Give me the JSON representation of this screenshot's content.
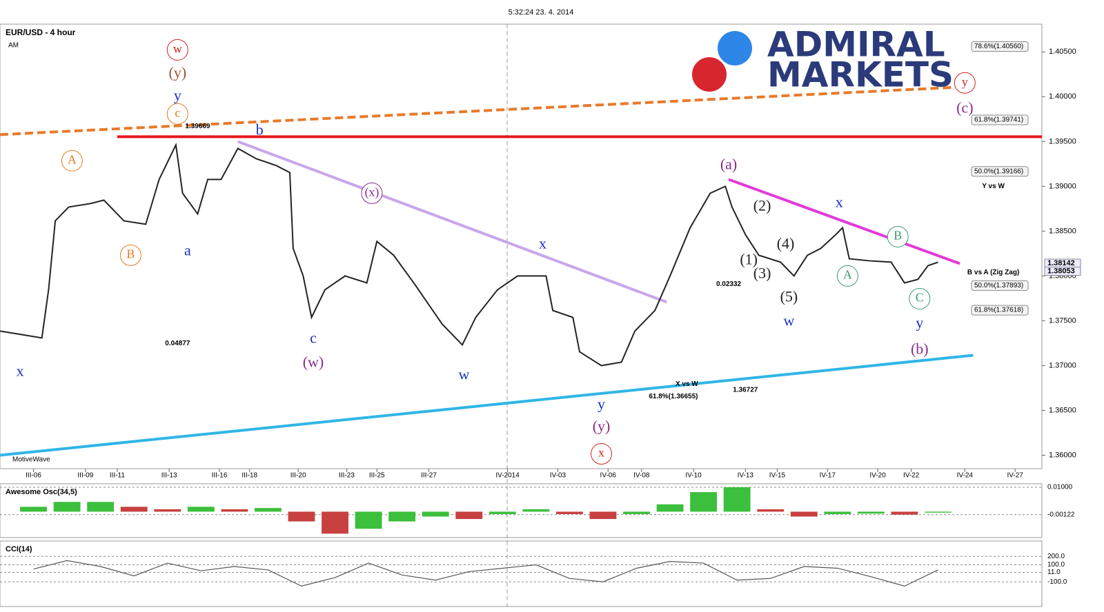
{
  "header": {
    "timestamp": "5:32:24 23. 4. 2014"
  },
  "logo": {
    "line1": "ADMIRAL",
    "line2": "MARKETS"
  },
  "chart_data": {
    "type": "line",
    "title": "EUR/USD - 4 hour",
    "subtitle": "AM",
    "source": "MotiveWave",
    "xlim": [
      -2.0,
      60.2
    ],
    "ylim": [
      1.3585,
      1.4081
    ],
    "xticks": [
      {
        "value": 0,
        "label": "III-06"
      },
      {
        "value": 3.1,
        "label": "III-09"
      },
      {
        "value": 5.0,
        "label": "III-11"
      },
      {
        "value": 8.1,
        "label": "III-13"
      },
      {
        "value": 11.1,
        "label": "III-16"
      },
      {
        "value": 12.9,
        "label": "III-18"
      },
      {
        "value": 15.8,
        "label": "III-20"
      },
      {
        "value": 18.7,
        "label": "III-23"
      },
      {
        "value": 20.5,
        "label": "III-25"
      },
      {
        "value": 23.6,
        "label": "III-27"
      },
      {
        "value": 28.3,
        "label": "IV-2014"
      },
      {
        "value": 31.3,
        "label": "IV-03"
      },
      {
        "value": 34.3,
        "label": "IV-06"
      },
      {
        "value": 36.3,
        "label": "IV-08"
      },
      {
        "value": 39.4,
        "label": "IV-10"
      },
      {
        "value": 42.5,
        "label": "IV-13"
      },
      {
        "value": 44.4,
        "label": "IV-15"
      },
      {
        "value": 47.4,
        "label": "IV-17"
      },
      {
        "value": 50.4,
        "label": "IV-20"
      },
      {
        "value": 52.4,
        "label": "IV-22"
      },
      {
        "value": 55.6,
        "label": "IV-24"
      },
      {
        "value": 58.6,
        "label": "IV-27"
      }
    ],
    "yticks": [
      {
        "value": 1.405,
        "label": "1.40500"
      },
      {
        "value": 1.4,
        "label": "1.40000"
      },
      {
        "value": 1.395,
        "label": "1.39500"
      },
      {
        "value": 1.39,
        "label": "1.39000"
      },
      {
        "value": 1.385,
        "label": "1.38500"
      },
      {
        "value": 1.38,
        "label": "1.38000"
      },
      {
        "value": 1.375,
        "label": "1.37500"
      },
      {
        "value": 1.37,
        "label": "1.37000"
      },
      {
        "value": 1.365,
        "label": "1.36500"
      },
      {
        "value": 1.36,
        "label": "1.36000"
      }
    ],
    "price_labels": [
      {
        "value": 1.38142,
        "label": "1.38142"
      },
      {
        "value": 1.38053,
        "label": "1.38053"
      }
    ],
    "series": [
      {
        "name": "EUR/USD",
        "color": "#222222",
        "x": [
          -2.0,
          -0.7,
          0.5,
          0.9,
          1.3,
          2.1,
          3.4,
          4.2,
          5.4,
          6.7,
          7.5,
          8.5,
          8.9,
          9.8,
          10.4,
          11.2,
          12.2,
          13.3,
          14.5,
          15.3,
          15.5,
          16.1,
          16.6,
          17.4,
          18.6,
          19.9,
          20.5,
          21.5,
          22.7,
          24.4,
          25.6,
          26.4,
          27.7,
          28.9,
          30.6,
          31.0,
          32.2,
          32.6,
          33.9,
          35.1,
          35.9,
          37.1,
          38.0,
          39.2,
          40.4,
          41.3,
          41.7,
          42.5,
          43.3,
          44.6,
          45.4,
          46.2,
          47.0,
          47.9,
          48.3,
          48.7,
          49.9,
          51.2,
          52.0,
          52.8,
          53.4,
          54.0
        ],
        "values": [
          1.37385,
          1.37346,
          1.37308,
          1.37846,
          1.38615,
          1.38769,
          1.38808,
          1.38846,
          1.38615,
          1.38577,
          1.39077,
          1.39462,
          1.38923,
          1.38692,
          1.39077,
          1.39077,
          1.39423,
          1.39308,
          1.39231,
          1.39154,
          1.38308,
          1.38,
          1.37538,
          1.37846,
          1.38,
          1.37923,
          1.38385,
          1.38231,
          1.37923,
          1.37462,
          1.37231,
          1.37538,
          1.37846,
          1.38,
          1.38,
          1.37615,
          1.37538,
          1.37154,
          1.37,
          1.37038,
          1.37385,
          1.37615,
          1.38,
          1.38538,
          1.38923,
          1.39,
          1.38769,
          1.38462,
          1.38231,
          1.38154,
          1.38,
          1.38231,
          1.38308,
          1.38462,
          1.38538,
          1.38192,
          1.38169,
          1.38154,
          1.37923,
          1.37962,
          1.38115,
          1.38154
        ]
      }
    ],
    "trendlines": [
      {
        "color": "#e87a2a",
        "dashed": true,
        "x": [
          -2.0,
          56.1
        ],
        "y": [
          1.39577,
          1.40115
        ]
      },
      {
        "color": "#e8161a",
        "dashed": false,
        "x": [
          5.0,
          60.2
        ],
        "y": [
          1.39554,
          1.39554
        ]
      },
      {
        "color": "#c9a6ea",
        "dashed": false,
        "x": [
          12.2,
          37.8
        ],
        "y": [
          1.395,
          1.37708
        ]
      },
      {
        "color": "#e23ad8",
        "dashed": false,
        "x": [
          41.5,
          55.3
        ],
        "y": [
          1.39077,
          1.38138
        ]
      },
      {
        "color": "#2fb6e6",
        "dashed": false,
        "x": [
          -2.0,
          56.1
        ],
        "y": [
          1.36,
          1.37115
        ]
      }
    ],
    "labels": [
      {
        "text": "w",
        "x": 8.6,
        "y": 1.40523,
        "color": "#d32020",
        "circled": true
      },
      {
        "text": "(y)",
        "x": 8.6,
        "y": 1.40254,
        "color": "#a0522d",
        "circled": false
      },
      {
        "text": "y",
        "x": 8.6,
        "y": 1.4,
        "color": "#1a2fbf",
        "circled": false
      },
      {
        "text": "c",
        "x": 8.6,
        "y": 1.39808,
        "color": "#e07b20",
        "circled": true
      },
      {
        "text": "b",
        "x": 13.5,
        "y": 1.39615,
        "color": "#1a2fbf",
        "circled": false
      },
      {
        "text": "A",
        "x": 2.3,
        "y": 1.39285,
        "color": "#e07b20",
        "circled": true
      },
      {
        "text": "B",
        "x": 5.8,
        "y": 1.38231,
        "color": "#e07b20",
        "circled": true
      },
      {
        "text": "a",
        "x": 9.2,
        "y": 1.38269,
        "color": "#1a2fbf",
        "circled": false
      },
      {
        "text": "x",
        "x": -0.8,
        "y": 1.36923,
        "color": "#1a2fbf",
        "circled": false
      },
      {
        "text": "(x)",
        "x": 20.2,
        "y": 1.38923,
        "color": "#8b2a8b",
        "circled": true
      },
      {
        "text": "c",
        "x": 16.7,
        "y": 1.37292,
        "color": "#1a2fbf",
        "circled": false
      },
      {
        "text": "(w)",
        "x": 16.7,
        "y": 1.37023,
        "color": "#8b2a8b",
        "circled": false
      },
      {
        "text": "w",
        "x": 25.7,
        "y": 1.36885,
        "color": "#1a2fbf",
        "circled": false
      },
      {
        "text": "x",
        "x": 30.4,
        "y": 1.38346,
        "color": "#1a2fbf",
        "circled": false
      },
      {
        "text": "y",
        "x": 33.9,
        "y": 1.36554,
        "color": "#1a2fbf",
        "circled": false
      },
      {
        "text": "(y)",
        "x": 33.9,
        "y": 1.36308,
        "color": "#8b2a8b",
        "circled": false
      },
      {
        "text": "x",
        "x": 33.9,
        "y": 1.36015,
        "color": "#d32020",
        "circled": true
      },
      {
        "text": "(a)",
        "x": 41.5,
        "y": 1.39231,
        "color": "#8b2a8b",
        "circled": false
      },
      {
        "text": "(2)",
        "x": 43.5,
        "y": 1.38769,
        "color": "#222222",
        "circled": false
      },
      {
        "text": "(4)",
        "x": 44.9,
        "y": 1.38346,
        "color": "#222222",
        "circled": false
      },
      {
        "text": "(1)",
        "x": 42.7,
        "y": 1.38169,
        "color": "#222222",
        "circled": false
      },
      {
        "text": "(3)",
        "x": 43.5,
        "y": 1.38015,
        "color": "#222222",
        "circled": false
      },
      {
        "text": "(5)",
        "x": 45.1,
        "y": 1.37754,
        "color": "#222222",
        "circled": false
      },
      {
        "text": "w",
        "x": 45.1,
        "y": 1.37485,
        "color": "#1a2fbf",
        "circled": false
      },
      {
        "text": "x",
        "x": 48.1,
        "y": 1.38808,
        "color": "#1a2fbf",
        "circled": false
      },
      {
        "text": "B",
        "x": 51.6,
        "y": 1.38438,
        "color": "#3a9a6a",
        "circled": true
      },
      {
        "text": "A",
        "x": 48.6,
        "y": 1.38,
        "color": "#3a9a6a",
        "circled": true
      },
      {
        "text": "C",
        "x": 52.9,
        "y": 1.37746,
        "color": "#3a9a6a",
        "circled": true
      },
      {
        "text": "y",
        "x": 52.9,
        "y": 1.37462,
        "color": "#1a2fbf",
        "circled": false
      },
      {
        "text": "(b)",
        "x": 52.9,
        "y": 1.37169,
        "color": "#8b2a8b",
        "circled": false
      },
      {
        "text": "y",
        "x": 55.6,
        "y": 1.40154,
        "color": "#d32020",
        "circled": true
      },
      {
        "text": "(c)",
        "x": 55.6,
        "y": 1.39862,
        "color": "#8b2a8b",
        "circled": false
      }
    ],
    "fib_labels": [
      {
        "label": "78.6%(1.40560)",
        "y": 1.4056
      },
      {
        "label": "61.8%(1.39741)",
        "y": 1.39741
      },
      {
        "label": "50.0%(1.39166)",
        "y": 1.39166
      },
      {
        "label": "50.0%(1.37893)",
        "y": 1.37893
      },
      {
        "label": "61.8%(1.37618)",
        "y": 1.37618
      }
    ],
    "notes": [
      {
        "text": "Y vs W",
        "x": 57.3,
        "y": 1.39
      },
      {
        "text": "B vs A (Zig Zag)",
        "x": 57.3,
        "y": 1.38038
      },
      {
        "text": "X vs W",
        "x": 39.0,
        "y": 1.36792
      },
      {
        "text": "61.8%(1.36655)",
        "x": 38.2,
        "y": 1.36655
      },
      {
        "text": "0.04877",
        "x": 8.6,
        "y": 1.37246
      },
      {
        "text": "0.02332",
        "x": 41.5,
        "y": 1.37908
      },
      {
        "text": "1.39669",
        "x": 9.8,
        "y": 1.39669
      },
      {
        "text": "1.36727",
        "x": 42.5,
        "y": 1.36727
      }
    ]
  },
  "ao": {
    "title": "Awesome Osc(34,5)",
    "ylim": [
      -0.0106,
      0.0114
    ],
    "yticks": [
      {
        "value": 0.01,
        "label": "0.01000"
      },
      {
        "value": -0.00122,
        "label": "-0.00122"
      }
    ],
    "x": [
      0,
      2,
      4,
      6,
      8,
      10,
      12,
      14,
      16,
      18,
      20,
      22,
      24,
      26,
      28,
      30,
      32,
      34,
      36,
      38,
      40,
      42,
      44,
      46,
      48,
      50,
      52,
      54
    ],
    "values": [
      0.002,
      0.004,
      0.004,
      0.002,
      0.001,
      0.002,
      0.001,
      0.0015,
      -0.004,
      -0.009,
      -0.007,
      -0.004,
      -0.002,
      -0.003,
      -0.001,
      0.001,
      -0.001,
      -0.003,
      -0.001,
      0.003,
      0.008,
      0.01,
      0.001,
      -0.002,
      -0.001,
      -0.0008,
      -0.0012,
      -0.0004
    ]
  },
  "cci": {
    "title": "CCI(14)",
    "ylim": [
      -390,
      380
    ],
    "yticks": [
      {
        "value": 200,
        "label": "200.0"
      },
      {
        "value": 100,
        "label": "100.0"
      },
      {
        "value": 11,
        "label": "11.0"
      },
      {
        "value": -100,
        "label": "-100.0"
      }
    ],
    "x": [
      0,
      2,
      4,
      6,
      8,
      10,
      12,
      14,
      16,
      18,
      20,
      22,
      24,
      26,
      28,
      30,
      32,
      34,
      36,
      38,
      40,
      42,
      44,
      46,
      48,
      50,
      52,
      54
    ],
    "values": [
      50,
      150,
      80,
      -30,
      120,
      30,
      80,
      40,
      -150,
      -50,
      120,
      -20,
      -80,
      20,
      60,
      100,
      -60,
      -100,
      60,
      140,
      120,
      -80,
      -60,
      80,
      60,
      -40,
      -150,
      40
    ]
  }
}
